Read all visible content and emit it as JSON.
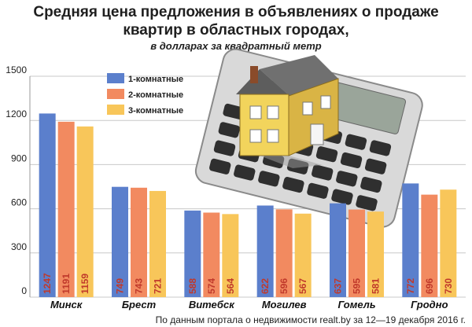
{
  "header": {
    "title_line1": "Средняя цена предложения в объявлениях о продаже",
    "title_line2": "квартир в областных городах,",
    "subtitle": "в долларах за квадратный метр"
  },
  "source": "По данным портала о недвижимости realt.by за 12—19 декабря 2016 г.",
  "illustration": "house-on-calculator",
  "colors": {
    "series1": "#5b7fcc",
    "series2": "#f28a60",
    "series3": "#f8c65a"
  },
  "chart_data": {
    "type": "bar",
    "title": "Средняя цена предложения в объявлениях о продаже квартир в областных городах,",
    "subtitle": "в долларах за квадратный метр",
    "categories": [
      "Минск",
      "Брест",
      "Витебск",
      "Могилев",
      "Гомель",
      "Гродно"
    ],
    "series": [
      {
        "name": "1-комнатные",
        "values": [
          1247,
          749,
          588,
          622,
          637,
          772
        ]
      },
      {
        "name": "2-комнатные",
        "values": [
          1191,
          743,
          574,
          596,
          595,
          696
        ]
      },
      {
        "name": "3-комнатные",
        "values": [
          1159,
          721,
          564,
          567,
          581,
          730
        ]
      }
    ],
    "ylim": [
      0,
      1500
    ],
    "yticks": [
      "0",
      "300",
      "600",
      "900",
      "1200",
      "1500"
    ],
    "grid": true,
    "legend": "top-left"
  }
}
